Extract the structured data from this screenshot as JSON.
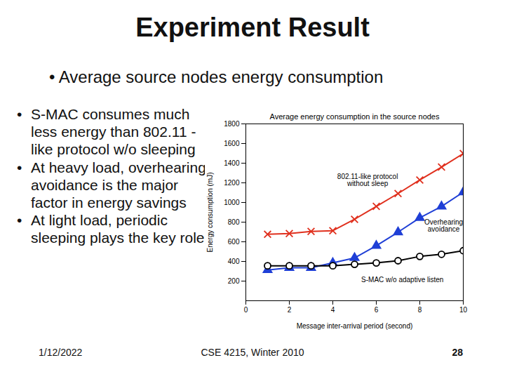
{
  "slide": {
    "title": "Experiment Result",
    "subtitle": "• Average source nodes energy consumption",
    "bullets": [
      "S-MAC consumes much less energy than 802.11 -like protocol w/o sleeping",
      "At heavy load, overhearing avoidance is the major factor in energy savings",
      "At light load, periodic sleeping plays the key role"
    ],
    "footer": {
      "date": "1/12/2022",
      "course": "CSE 4215, Winter 2010",
      "page": "28"
    }
  },
  "chart_data": {
    "type": "line",
    "title": "Average energy consumption in the source nodes",
    "xlabel": "Message inter-arrival period (second)",
    "ylabel": "Energy consumption (mJ)",
    "x": [
      1,
      2,
      3,
      4,
      5,
      6,
      7,
      8,
      9,
      10
    ],
    "series": [
      {
        "name": "802.11-like protocol without sleep",
        "color": "#e0301e",
        "marker": "x",
        "values": [
          676,
          684,
          705,
          713,
          829,
          960,
          1091,
          1229,
          1360,
          1498
        ]
      },
      {
        "name": "Overhearing avoidance",
        "color": "#1f3fd6",
        "marker": "triangle",
        "values": [
          313,
          335,
          335,
          385,
          436,
          560,
          698,
          844,
          960,
          1105
        ]
      },
      {
        "name": "S-MAC w/o adaptive listen",
        "color": "#000000",
        "marker": "circle",
        "values": [
          356,
          356,
          356,
          356,
          371,
          385,
          407,
          451,
          473,
          509
        ]
      }
    ],
    "xlim": [
      0,
      10
    ],
    "xticks": [
      0,
      2,
      4,
      6,
      8,
      10
    ],
    "ylim": [
      0,
      1800
    ],
    "yticks": [
      200,
      400,
      600,
      800,
      1000,
      1200,
      1400,
      1600,
      1800
    ],
    "grid": false
  }
}
